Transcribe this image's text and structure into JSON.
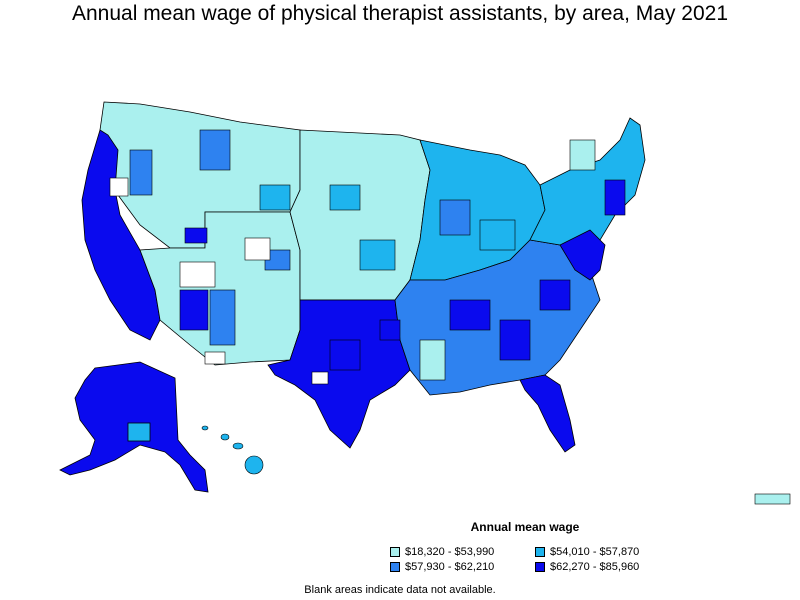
{
  "title": "Annual mean wage of physical therapist assistants, by area, May 2021",
  "legend": {
    "title": "Annual mean wage",
    "items": [
      {
        "label": "$18,320 - $53,990",
        "color": "#aaf0ee"
      },
      {
        "label": "$54,010 - $57,870",
        "color": "#1eb4ee"
      },
      {
        "label": "$57,930 - $62,210",
        "color": "#2e82f0"
      },
      {
        "label": "$62,270 - $85,960",
        "color": "#0a0aee"
      }
    ]
  },
  "note": "Blank areas indicate data not available.",
  "colors": {
    "outline": "#000000",
    "blank": "#ffffff"
  }
}
